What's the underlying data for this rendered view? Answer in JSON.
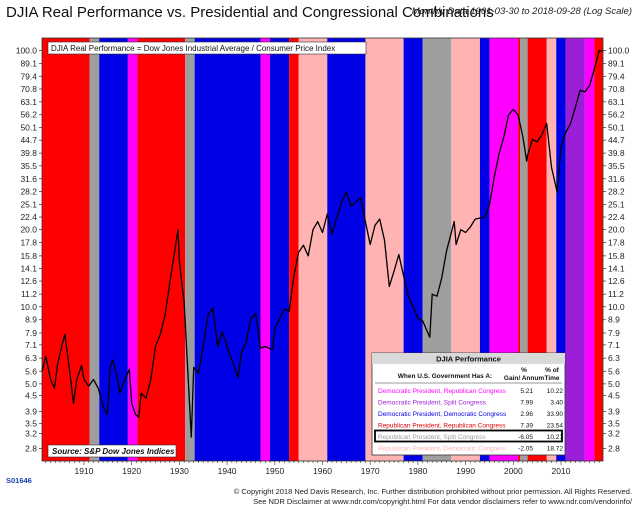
{
  "chart_data": {
    "type": "line",
    "title": "DJIA Real Performance vs. Presidential and Congressional Combinations",
    "subtitle": "Monthly Data 1901-03-30 to 2018-09-28 (Log Scale)",
    "inner_label": "DJIA Real Performance = Dow Jones Industrial Average / Consumer Price Index",
    "source": "Source:  S&P Dow Jones Indices",
    "y_scale": "log",
    "ylim": [
      2.5,
      112
    ],
    "xlim": [
      1901.2,
      2018.8
    ],
    "y_ticks": [
      "100.0",
      "89.1",
      "79.4",
      "70.8",
      "63.1",
      "56.2",
      "50.1",
      "44.7",
      "39.8",
      "35.5",
      "31.6",
      "28.2",
      "25.1",
      "22.4",
      "20.0",
      "17.8",
      "15.8",
      "14.1",
      "12.6",
      "11.2",
      "10.0",
      "8.9",
      "7.9",
      "7.1",
      "6.3",
      "5.6",
      "5.0",
      "4.5",
      "3.9",
      "3.5",
      "3.2",
      "2.8"
    ],
    "x_ticks": [
      "1910",
      "1920",
      "1930",
      "1940",
      "1950",
      "1960",
      "1970",
      "1980",
      "1990",
      "2000",
      "2010"
    ],
    "band_colors": {
      "DR": "#ff00ff",
      "DS": "#9b1fd6",
      "DD": "#0000e6",
      "RR": "#ff0000",
      "RS": "#9e9e9e",
      "RD": "#ffb3b3",
      "RSdark": "#5a5a5a"
    },
    "bands": [
      {
        "start": 1901.2,
        "end": 1911.2,
        "type": "RR"
      },
      {
        "start": 1911.2,
        "end": 1913.2,
        "type": "RS"
      },
      {
        "start": 1913.2,
        "end": 1919.2,
        "type": "DD"
      },
      {
        "start": 1919.2,
        "end": 1921.2,
        "type": "DR"
      },
      {
        "start": 1921.2,
        "end": 1931.2,
        "type": "RR"
      },
      {
        "start": 1931.2,
        "end": 1933.2,
        "type": "RS"
      },
      {
        "start": 1933.2,
        "end": 1947.0,
        "type": "DD"
      },
      {
        "start": 1947.0,
        "end": 1949.0,
        "type": "DR"
      },
      {
        "start": 1949.0,
        "end": 1953.0,
        "type": "DD"
      },
      {
        "start": 1953.0,
        "end": 1955.0,
        "type": "RR"
      },
      {
        "start": 1955.0,
        "end": 1961.0,
        "type": "RD"
      },
      {
        "start": 1961.0,
        "end": 1969.0,
        "type": "DD"
      },
      {
        "start": 1969.0,
        "end": 1977.0,
        "type": "RD"
      },
      {
        "start": 1977.0,
        "end": 1981.0,
        "type": "DD"
      },
      {
        "start": 1981.0,
        "end": 1987.0,
        "type": "RS"
      },
      {
        "start": 1987.0,
        "end": 1993.0,
        "type": "RD"
      },
      {
        "start": 1993.0,
        "end": 1995.0,
        "type": "DD"
      },
      {
        "start": 1995.0,
        "end": 2001.0,
        "type": "DR"
      },
      {
        "start": 2001.0,
        "end": 2001.4,
        "type": "RR"
      },
      {
        "start": 2001.4,
        "end": 2003.0,
        "type": "RS"
      },
      {
        "start": 2003.0,
        "end": 2007.0,
        "type": "RR"
      },
      {
        "start": 2007.0,
        "end": 2009.0,
        "type": "RD"
      },
      {
        "start": 2009.0,
        "end": 2011.0,
        "type": "DD"
      },
      {
        "start": 2011.0,
        "end": 2015.0,
        "type": "DS"
      },
      {
        "start": 2015.0,
        "end": 2017.0,
        "type": "DR"
      },
      {
        "start": 2017.0,
        "end": 2018.8,
        "type": "RR"
      }
    ],
    "series": [
      {
        "x": [
          1901.2,
          1902,
          1903,
          1903.8,
          1904.5,
          1905.5,
          1906,
          1907,
          1907.8,
          1908.5,
          1909.5,
          1910,
          1911,
          1912,
          1913,
          1914,
          1914.9,
          1915.5,
          1916,
          1916.8,
          1917.5,
          1918,
          1919.5,
          1920,
          1920.8,
          1921.5,
          1922,
          1923,
          1924,
          1925,
          1926,
          1927,
          1928,
          1929.7,
          1930,
          1931,
          1932.5,
          1933,
          1934,
          1935,
          1936,
          1937,
          1938,
          1939,
          1940,
          1941,
          1942.3,
          1943,
          1944,
          1945,
          1946,
          1947,
          1948,
          1949.5,
          1950,
          1951,
          1952,
          1953,
          1954,
          1955,
          1956,
          1957,
          1958,
          1959,
          1960,
          1961,
          1962,
          1963,
          1964,
          1965,
          1966,
          1967,
          1968,
          1969,
          1970,
          1971,
          1972,
          1973,
          1974,
          1975,
          1976,
          1977,
          1978,
          1979,
          1980,
          1981,
          1982.5,
          1983,
          1984,
          1985,
          1986,
          1987.6,
          1988,
          1989,
          1990,
          1991,
          1992,
          1993,
          1994,
          1995,
          1996,
          1997,
          1998,
          1999,
          2000,
          2001,
          2002,
          2002.8,
          2003,
          2004,
          2005,
          2006,
          2007,
          2008,
          2009.2,
          2010,
          2011,
          2012,
          2013,
          2014,
          2015,
          2016,
          2017,
          2018,
          2018.7
        ],
        "y": [
          5.6,
          6.4,
          5.2,
          4.8,
          6.0,
          7.2,
          7.8,
          5.6,
          4.2,
          5.2,
          5.9,
          5.2,
          4.9,
          5.2,
          4.8,
          4.1,
          3.8,
          5.8,
          6.2,
          5.5,
          4.6,
          4.9,
          5.7,
          4.2,
          3.8,
          3.7,
          4.6,
          4.4,
          5.2,
          7.0,
          7.8,
          9.3,
          12.4,
          20.0,
          15.0,
          10.3,
          3.1,
          5.8,
          5.5,
          7.0,
          9.3,
          9.9,
          7.0,
          8.0,
          7.0,
          6.2,
          5.3,
          6.6,
          7.3,
          9.0,
          9.4,
          6.9,
          7.0,
          6.8,
          8.2,
          9.0,
          9.8,
          9.6,
          13.2,
          16.3,
          17.4,
          15.8,
          20.0,
          21.5,
          19.5,
          23.0,
          19.2,
          22.3,
          25.6,
          28.0,
          24.7,
          25.7,
          26.7,
          21.5,
          17.5,
          20.8,
          22.0,
          18.2,
          12.0,
          13.8,
          16.0,
          13.2,
          11.0,
          10.0,
          9.0,
          8.8,
          7.6,
          11.2,
          11.0,
          13.0,
          16.5,
          21.5,
          17.5,
          20.0,
          19.5,
          20.5,
          22.0,
          22.2,
          22.3,
          25.0,
          32.0,
          39.5,
          46.0,
          56.0,
          59.0,
          56.0,
          46.0,
          37.0,
          39.0,
          45.0,
          44.0,
          47.0,
          52.0,
          35.0,
          28.0,
          42.0,
          48.0,
          52.0,
          60.0,
          70.0,
          69.0,
          73.0,
          85.0,
          100.0,
          99.5
        ]
      }
    ],
    "table": {
      "title": "DJIA Performance",
      "header": [
        "When U.S. Government Has A:",
        "% Gain/ Annum",
        "% of Time"
      ],
      "rows": [
        {
          "label": "Democratic President, Republican Congress",
          "gain": "5.21",
          "time": "10.22",
          "color": "#ff00ff"
        },
        {
          "label": "Democratic President, Split Congress",
          "gain": "7.99",
          "time": "3.40",
          "color": "#9b1fd6"
        },
        {
          "label": "Democratic President, Democratic Congress",
          "gain": "2.96",
          "time": "33.90",
          "color": "#0000e6"
        },
        {
          "label": "Republican President, Republican Congress",
          "gain": "7.39",
          "time": "23.54",
          "color": "#e00000"
        },
        {
          "label": "Republican President, Split Congress",
          "gain": "-6.05",
          "time": "10.21",
          "color": "#9e9e9e"
        },
        {
          "label": "Republican President, Democratic Congress",
          "gain": "-2.05",
          "time": "18.72",
          "color": "#ffb3b3"
        }
      ]
    }
  },
  "footer": {
    "code": "S01646",
    "line1": "© Copyright 2018 Ned Davis Research, Inc. Further distribution prohibited without prior permission. All Rights Reserved.",
    "line2": "See NDR Disclaimer at www.ndr.com/copyright.html   For data vendor disclaimers refer to www.ndr.com/vendorinfo/"
  }
}
